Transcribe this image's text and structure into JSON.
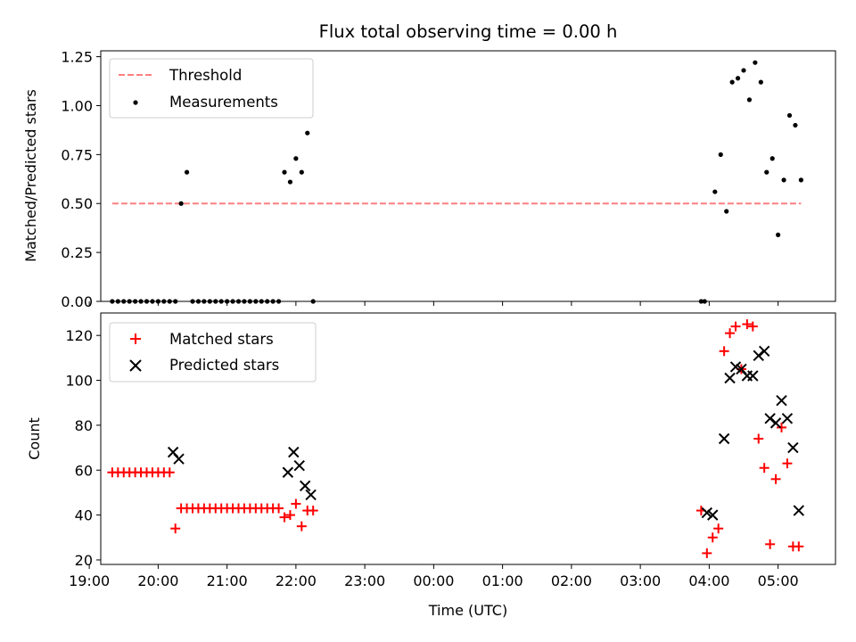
{
  "chart_data": [
    {
      "type": "scatter",
      "title": "Flux total observing time = 0.00 h",
      "xlabel": "",
      "ylabel": "Matched/Predicted stars",
      "xlim": [
        "19:10",
        "05:50"
      ],
      "ylim": [
        0,
        1.28
      ],
      "yticks": [
        0.0,
        0.25,
        0.5,
        0.75,
        1.0,
        1.25
      ],
      "ytick_labels": [
        "0.00",
        "0.25",
        "0.50",
        "0.75",
        "1.00",
        "1.25"
      ],
      "legend": {
        "position": "top-left",
        "entries": [
          {
            "label": "Threshold",
            "style": "dashed-line",
            "color": "#ff7f7f"
          },
          {
            "label": "Measurements",
            "style": "dot",
            "color": "#000000"
          }
        ]
      },
      "threshold": {
        "value": 0.5,
        "x_start": "19:20",
        "x_end": "05:20",
        "color": "#ff7f7f"
      },
      "series": [
        {
          "name": "Measurements",
          "marker": "dot",
          "color": "#000000",
          "x": [
            "19:20",
            "19:25",
            "19:30",
            "19:35",
            "19:40",
            "19:45",
            "19:50",
            "19:55",
            "20:00",
            "20:05",
            "20:10",
            "20:15",
            "20:20",
            "20:25",
            "20:30",
            "20:35",
            "20:40",
            "20:45",
            "20:50",
            "20:55",
            "21:00",
            "21:05",
            "21:10",
            "21:15",
            "21:20",
            "21:25",
            "21:30",
            "21:35",
            "21:40",
            "21:45",
            "21:50",
            "21:55",
            "22:00",
            "22:05",
            "22:10",
            "22:15",
            "03:53",
            "03:56",
            "04:05",
            "04:10",
            "04:15",
            "04:20",
            "04:25",
            "04:30",
            "04:35",
            "04:40",
            "04:45",
            "04:50",
            "04:55",
            "05:00",
            "05:05",
            "05:10",
            "05:15",
            "05:20"
          ],
          "y": [
            0,
            0,
            0,
            0,
            0,
            0,
            0,
            0,
            0,
            0,
            0,
            0,
            0.5,
            0.66,
            0,
            0,
            0,
            0,
            0,
            0,
            0,
            0,
            0,
            0,
            0,
            0,
            0,
            0,
            0,
            0,
            0.66,
            0.61,
            0.73,
            0.66,
            0.86,
            0,
            0,
            0,
            0.56,
            0.75,
            0.46,
            1.12,
            1.14,
            1.18,
            1.03,
            1.22,
            1.12,
            0.66,
            0.73,
            0.34,
            0.62,
            0.95,
            0.9,
            0.62
          ]
        }
      ]
    },
    {
      "type": "scatter",
      "title": "",
      "xlabel": "Time (UTC)",
      "ylabel": "Count",
      "xlim": [
        "19:10",
        "05:50"
      ],
      "ylim": [
        18,
        130
      ],
      "yticks": [
        20,
        40,
        60,
        80,
        100,
        120
      ],
      "xticks": [
        "19:00",
        "20:00",
        "21:00",
        "22:00",
        "23:00",
        "00:00",
        "01:00",
        "02:00",
        "03:00",
        "04:00",
        "05:00"
      ],
      "legend": {
        "position": "top-left",
        "entries": [
          {
            "label": "Matched stars",
            "style": "plus",
            "color": "#ff0000"
          },
          {
            "label": "Predicted stars",
            "style": "x",
            "color": "#000000"
          }
        ]
      },
      "series": [
        {
          "name": "Matched stars",
          "marker": "plus",
          "color": "#ff0000",
          "x": [
            "19:20",
            "19:25",
            "19:30",
            "19:35",
            "19:40",
            "19:45",
            "19:50",
            "19:55",
            "20:00",
            "20:05",
            "20:10",
            "20:15",
            "20:20",
            "20:25",
            "20:30",
            "20:35",
            "20:40",
            "20:45",
            "20:50",
            "20:55",
            "21:00",
            "21:05",
            "21:10",
            "21:15",
            "21:20",
            "21:25",
            "21:30",
            "21:35",
            "21:40",
            "21:45",
            "21:50",
            "21:55",
            "22:00",
            "22:05",
            "22:10",
            "22:15",
            "03:53",
            "03:58",
            "04:03",
            "04:08",
            "04:13",
            "04:18",
            "04:23",
            "04:28",
            "04:33",
            "04:38",
            "04:43",
            "04:48",
            "04:53",
            "04:58",
            "05:03",
            "05:08",
            "05:13",
            "05:18"
          ],
          "y": [
            59,
            59,
            59,
            59,
            59,
            59,
            59,
            59,
            59,
            59,
            59,
            34,
            43,
            43,
            43,
            43,
            43,
            43,
            43,
            43,
            43,
            43,
            43,
            43,
            43,
            43,
            43,
            43,
            43,
            43,
            39,
            40,
            45,
            35,
            42,
            42,
            42,
            23,
            30,
            34,
            113,
            121,
            124,
            105,
            125,
            124,
            74,
            61,
            27,
            56,
            79,
            63,
            26,
            26
          ]
        },
        {
          "name": "Predicted stars",
          "marker": "x",
          "color": "#000000",
          "x": [
            "20:13",
            "20:18",
            "21:53",
            "21:58",
            "22:03",
            "22:08",
            "22:13",
            "03:58",
            "04:03",
            "04:13",
            "04:18",
            "04:23",
            "04:28",
            "04:33",
            "04:38",
            "04:43",
            "04:48",
            "04:53",
            "04:58",
            "05:03",
            "05:08",
            "05:13",
            "05:18"
          ],
          "y": [
            68,
            65,
            59,
            68,
            62,
            53,
            49,
            41,
            40,
            74,
            101,
            106,
            105,
            102,
            102,
            111,
            113,
            83,
            81,
            91,
            83,
            70,
            42
          ]
        }
      ]
    }
  ]
}
